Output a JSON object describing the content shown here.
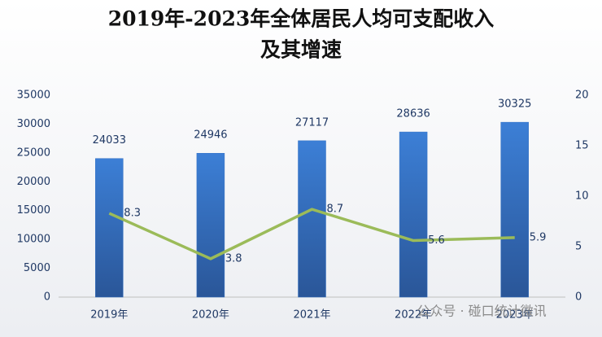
{
  "chart_data": {
    "type": "bar",
    "title": [
      "2019年-2023年全体居民人均可支配收入",
      "及其增速"
    ],
    "categories": [
      "2019年",
      "2020年",
      "2021年",
      "2022年",
      "2023年"
    ],
    "series": [
      {
        "type": "bar",
        "color": "#3370c4",
        "values": [
          24033,
          24946,
          27117,
          28636,
          30325
        ]
      },
      {
        "type": "line",
        "color": "#9bbb59",
        "axis": "y2",
        "values": [
          8.3,
          3.8,
          8.7,
          5.6,
          5.9
        ]
      }
    ],
    "ylim": [
      0,
      35000
    ],
    "yticks": [
      0,
      5000,
      10000,
      15000,
      20000,
      25000,
      30000,
      35000
    ],
    "y2lim": [
      0,
      20
    ],
    "y2ticks": [
      0,
      5,
      10,
      15,
      20
    ],
    "grid": false,
    "watermark": "公众号 · 碰口统计微讯"
  }
}
